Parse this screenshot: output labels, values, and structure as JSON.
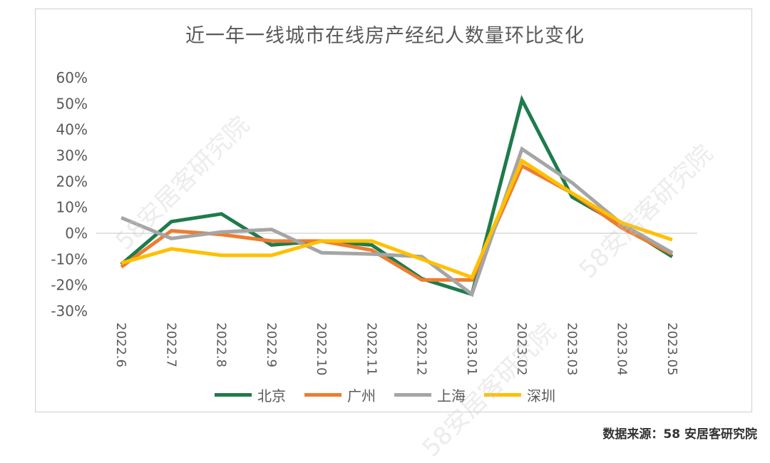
{
  "chart_data": {
    "type": "line",
    "title": "近一年一线城市在线房产经纪人数量环比变化",
    "categories": [
      "2022.6",
      "2022.7",
      "2022.8",
      "2022.9",
      "2022.10",
      "2022.11",
      "2022.12",
      "2023.01",
      "2023.02",
      "2023.03",
      "2023.04",
      "2023.05"
    ],
    "ylim": [
      -30,
      60
    ],
    "yticks": [
      "60%",
      "50%",
      "40%",
      "30%",
      "20%",
      "10%",
      "0%",
      "-10%",
      "-20%",
      "-30%"
    ],
    "grid": false,
    "legend_position": "bottom",
    "series": [
      {
        "name": "北京",
        "color": "#1e7b4b",
        "values": [
          -12,
          4.5,
          7.5,
          -4.5,
          -3,
          -4.5,
          -17.5,
          -23.5,
          51.5,
          14,
          3,
          -9
        ]
      },
      {
        "name": "广州",
        "color": "#ed7d31",
        "values": [
          -13,
          1,
          -0.5,
          -3,
          -3,
          -6.5,
          -18,
          -18,
          26,
          15.5,
          2,
          -8
        ]
      },
      {
        "name": "上海",
        "color": "#a5a5a5",
        "values": [
          6,
          -2,
          0.5,
          1.5,
          -7.5,
          -8,
          -9,
          -23.5,
          32.5,
          19.5,
          3.5,
          -7.5
        ]
      },
      {
        "name": "深圳",
        "color": "#ffc000",
        "values": [
          -11.5,
          -6,
          -8.5,
          -8.5,
          -3,
          -3,
          -10,
          -17,
          28,
          15.5,
          4,
          -2.5
        ]
      }
    ]
  },
  "source_text": "数据来源：58 安居客研究院",
  "watermark_text": "58安居客研究院"
}
